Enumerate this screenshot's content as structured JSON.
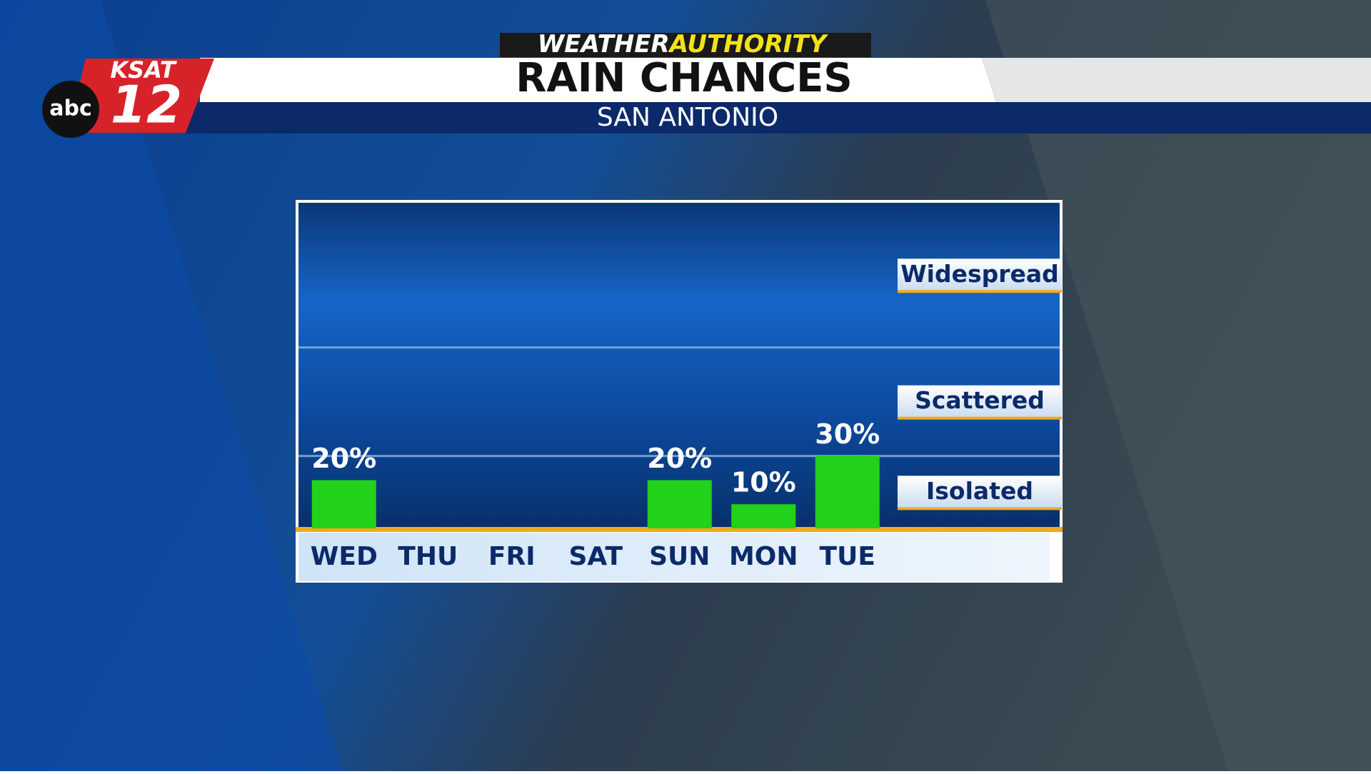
{
  "header": {
    "brand_1": "WEATHER",
    "brand_2": "AUTHORITY",
    "station": "KSAT",
    "channel": "12",
    "network": "abc"
  },
  "chart_data": {
    "type": "bar",
    "title": "RAIN CHANCES",
    "subtitle": "SAN ANTONIO",
    "categories": [
      "WED",
      "THU",
      "FRI",
      "SAT",
      "SUN",
      "MON",
      "TUE"
    ],
    "values": [
      20,
      0,
      0,
      0,
      20,
      10,
      30
    ],
    "value_labels": [
      "20%",
      null,
      null,
      null,
      "20%",
      "10%",
      "30%"
    ],
    "color": "#22d11a",
    "ylim": [
      0,
      135
    ],
    "bands": [
      {
        "label": "Isolated",
        "max": 30
      },
      {
        "label": "Scattered",
        "max": 75
      },
      {
        "label": "Widespread",
        "max": 135
      }
    ]
  }
}
